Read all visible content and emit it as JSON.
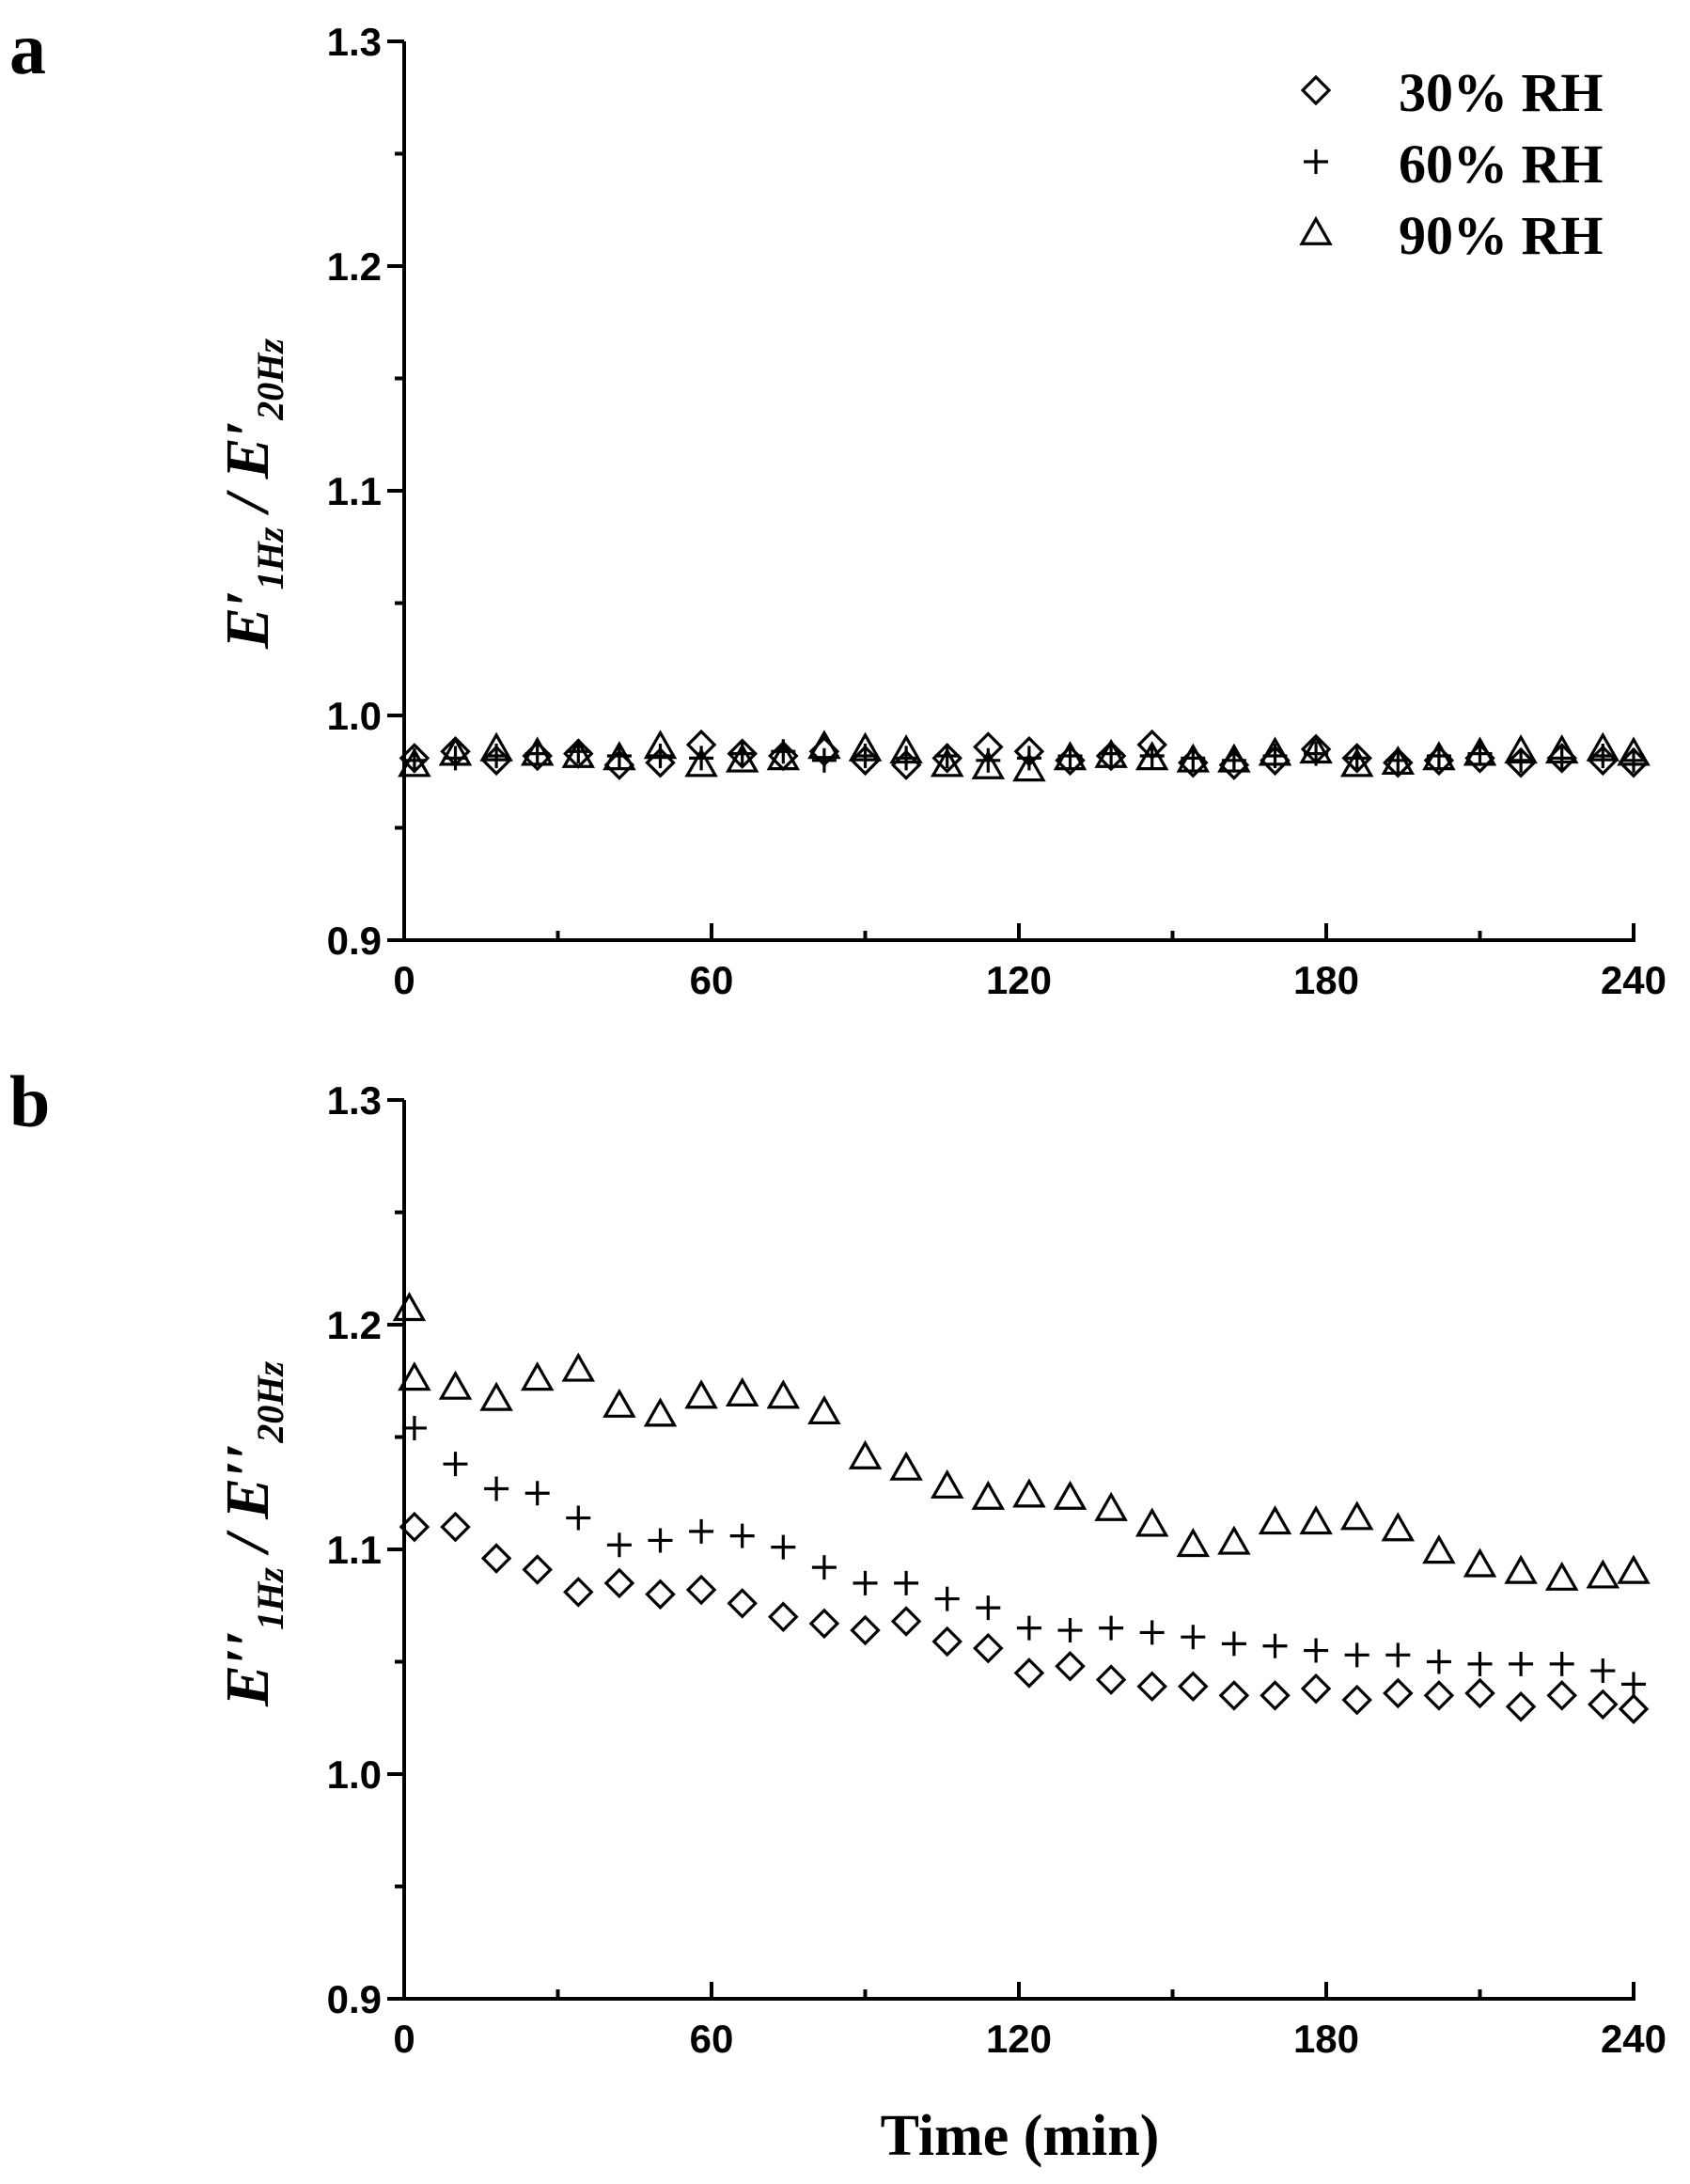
{
  "chart_data": [
    {
      "panel": "a",
      "type": "scatter",
      "ylabel": {
        "main": "E′",
        "sub1": "1Hz",
        "sep": " / ",
        "main2": "E′",
        "sub2": "20Hz"
      },
      "xlabel": "",
      "xlim": [
        0,
        240
      ],
      "ylim": [
        0.9,
        1.3
      ],
      "xticks": [
        "0",
        "60",
        "120",
        "180",
        "240"
      ],
      "yticks": [
        "0.9",
        "1.0",
        "1.1",
        "1.2",
        "1.3"
      ],
      "legend": {
        "position": "top-right",
        "entries": [
          "30% RH",
          "60% RH",
          "90% RH"
        ]
      },
      "series": [
        {
          "name": "30% RH",
          "marker": "diamond",
          "x": [
            2,
            10,
            18,
            26,
            34,
            42,
            50,
            58,
            66,
            74,
            82,
            90,
            98,
            106,
            114,
            122,
            130,
            138,
            146,
            154,
            162,
            170,
            178,
            186,
            194,
            202,
            210,
            218,
            226,
            234,
            240
          ],
          "y": [
            0.981,
            0.984,
            0.98,
            0.982,
            0.983,
            0.978,
            0.979,
            0.987,
            0.983,
            0.982,
            0.984,
            0.98,
            0.978,
            0.981,
            0.986,
            0.984,
            0.98,
            0.982,
            0.987,
            0.979,
            0.978,
            0.98,
            0.985,
            0.981,
            0.979,
            0.98,
            0.981,
            0.979,
            0.981,
            0.98,
            0.979
          ]
        },
        {
          "name": "60% RH",
          "marker": "plus",
          "x": [
            2,
            10,
            18,
            26,
            34,
            42,
            50,
            58,
            66,
            74,
            82,
            90,
            98,
            106,
            114,
            122,
            130,
            138,
            146,
            154,
            162,
            170,
            178,
            186,
            194,
            202,
            210,
            218,
            226,
            234,
            240
          ],
          "y": [
            0.98,
            0.981,
            0.982,
            0.983,
            0.984,
            0.982,
            0.982,
            0.981,
            0.983,
            0.984,
            0.98,
            0.982,
            0.981,
            0.982,
            0.98,
            0.981,
            0.982,
            0.983,
            0.982,
            0.981,
            0.98,
            0.982,
            0.983,
            0.981,
            0.98,
            0.982,
            0.983,
            0.98,
            0.981,
            0.982,
            0.98
          ]
        },
        {
          "name": "90% RH",
          "marker": "triangle",
          "x": [
            2,
            10,
            18,
            26,
            34,
            42,
            50,
            58,
            66,
            74,
            82,
            90,
            98,
            106,
            114,
            122,
            130,
            138,
            146,
            154,
            162,
            170,
            178,
            186,
            194,
            202,
            210,
            218,
            226,
            234,
            240
          ],
          "y": [
            0.978,
            0.983,
            0.985,
            0.983,
            0.982,
            0.981,
            0.986,
            0.978,
            0.98,
            0.981,
            0.986,
            0.985,
            0.984,
            0.978,
            0.977,
            0.976,
            0.981,
            0.982,
            0.981,
            0.98,
            0.98,
            0.983,
            0.984,
            0.978,
            0.979,
            0.981,
            0.983,
            0.984,
            0.984,
            0.985,
            0.983
          ]
        }
      ]
    },
    {
      "panel": "b",
      "type": "scatter",
      "ylabel": {
        "main": "E′′",
        "sub1": "1Hz",
        "sep": " / ",
        "main2": "E′′",
        "sub2": "20Hz"
      },
      "xlabel": "Time (min)",
      "xlim": [
        0,
        240
      ],
      "ylim": [
        0.9,
        1.3
      ],
      "xticks": [
        "0",
        "60",
        "120",
        "180",
        "240"
      ],
      "yticks": [
        "0.9",
        "1.0",
        "1.1",
        "1.2",
        "1.3"
      ],
      "series": [
        {
          "name": "30% RH",
          "marker": "diamond",
          "x": [
            2,
            10,
            18,
            26,
            34,
            42,
            50,
            58,
            66,
            74,
            82,
            90,
            98,
            106,
            114,
            122,
            130,
            138,
            146,
            154,
            162,
            170,
            178,
            186,
            194,
            202,
            210,
            218,
            226,
            234,
            240
          ],
          "y": [
            1.11,
            1.11,
            1.096,
            1.091,
            1.081,
            1.085,
            1.08,
            1.082,
            1.076,
            1.07,
            1.067,
            1.064,
            1.068,
            1.059,
            1.056,
            1.045,
            1.048,
            1.042,
            1.039,
            1.039,
            1.035,
            1.035,
            1.038,
            1.033,
            1.036,
            1.035,
            1.036,
            1.03,
            1.035,
            1.031,
            1.029
          ]
        },
        {
          "name": "60% RH",
          "marker": "plus",
          "x": [
            2,
            10,
            18,
            26,
            34,
            42,
            50,
            58,
            66,
            74,
            82,
            90,
            98,
            106,
            114,
            122,
            130,
            138,
            146,
            154,
            162,
            170,
            178,
            186,
            194,
            202,
            210,
            218,
            226,
            234,
            240
          ],
          "y": [
            1.154,
            1.138,
            1.127,
            1.125,
            1.114,
            1.102,
            1.104,
            1.108,
            1.106,
            1.101,
            1.092,
            1.085,
            1.085,
            1.078,
            1.074,
            1.065,
            1.064,
            1.065,
            1.063,
            1.061,
            1.058,
            1.057,
            1.055,
            1.053,
            1.053,
            1.05,
            1.049,
            1.049,
            1.049,
            1.046,
            1.04
          ]
        },
        {
          "name": "90% RH",
          "marker": "triangle",
          "x": [
            1,
            2,
            10,
            18,
            26,
            34,
            42,
            50,
            58,
            66,
            74,
            82,
            90,
            98,
            106,
            114,
            122,
            130,
            138,
            146,
            154,
            162,
            170,
            178,
            186,
            194,
            202,
            210,
            218,
            226,
            234,
            240
          ],
          "y": [
            1.207,
            1.176,
            1.172,
            1.167,
            1.176,
            1.18,
            1.164,
            1.16,
            1.168,
            1.169,
            1.168,
            1.161,
            1.141,
            1.136,
            1.128,
            1.123,
            1.124,
            1.123,
            1.118,
            1.111,
            1.102,
            1.103,
            1.112,
            1.112,
            1.114,
            1.109,
            1.099,
            1.093,
            1.09,
            1.087,
            1.088,
            1.09
          ]
        }
      ]
    }
  ]
}
